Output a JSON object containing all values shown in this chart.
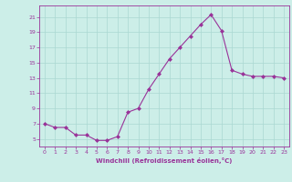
{
  "x": [
    0,
    1,
    2,
    3,
    4,
    5,
    6,
    7,
    8,
    9,
    10,
    11,
    12,
    13,
    14,
    15,
    16,
    17,
    18,
    19,
    20,
    21,
    22,
    23
  ],
  "y": [
    7.0,
    6.5,
    6.5,
    5.5,
    5.5,
    4.8,
    4.8,
    5.3,
    8.5,
    9.0,
    11.5,
    13.5,
    15.5,
    17.0,
    18.5,
    20.0,
    21.3,
    19.2,
    14.0,
    13.5,
    13.2,
    13.2,
    13.2,
    13.0
  ],
  "line_color": "#993399",
  "marker": "D",
  "marker_size": 2,
  "bg_color": "#cceee8",
  "grid_color": "#aad8d2",
  "xlabel": "Windchill (Refroidissement éolien,°C)",
  "xlabel_color": "#993399",
  "tick_color": "#993399",
  "xlim": [
    -0.5,
    23.5
  ],
  "ylim": [
    4.0,
    22.5
  ],
  "yticks": [
    5,
    7,
    9,
    11,
    13,
    15,
    17,
    19,
    21
  ],
  "xticks": [
    0,
    1,
    2,
    3,
    4,
    5,
    6,
    7,
    8,
    9,
    10,
    11,
    12,
    13,
    14,
    15,
    16,
    17,
    18,
    19,
    20,
    21,
    22,
    23
  ]
}
